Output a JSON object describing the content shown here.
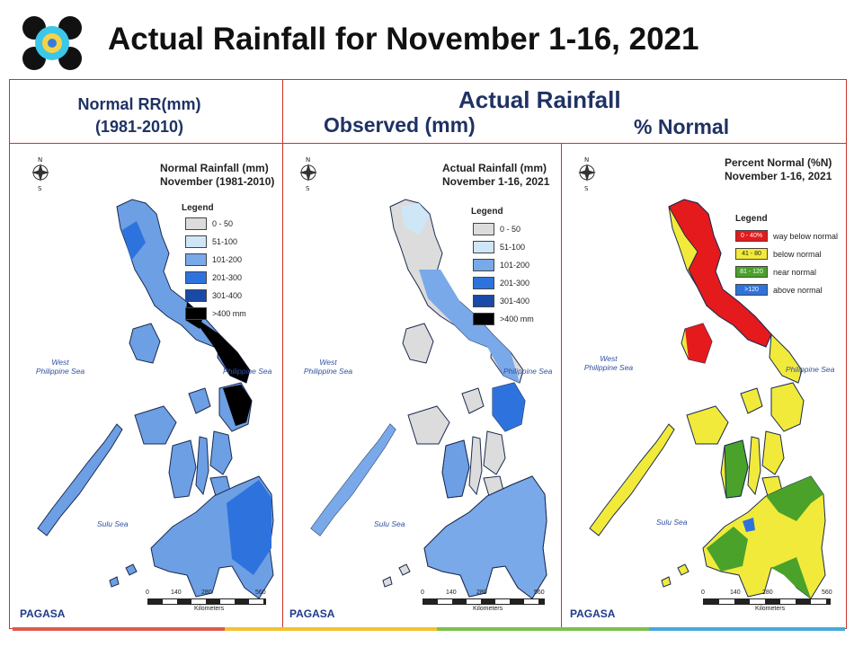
{
  "title": "Actual Rainfall for November 1-16, 2021",
  "headers": {
    "normal_line1": "Normal RR(mm)",
    "normal_line2": "(1981-2010)",
    "actual": "Actual Rainfall",
    "observed": "Observed (mm)",
    "percent": "% Normal"
  },
  "panels": [
    {
      "title_line1": "Normal Rainfall (mm)",
      "title_line2": "November (1981-2010)",
      "legend_title": "Legend",
      "legend": [
        {
          "label": "0 - 50",
          "color": "#dcdcdc"
        },
        {
          "label": "51-100",
          "color": "#cfe6f7"
        },
        {
          "label": "101-200",
          "color": "#79a9e8"
        },
        {
          "label": "201-300",
          "color": "#2e73dd"
        },
        {
          "label": "301-400",
          "color": "#1a4aa8"
        },
        {
          "label": ">400 mm",
          "color": "#000000"
        }
      ]
    },
    {
      "title_line1": "Actual Rainfall (mm)",
      "title_line2": "November 1-16, 2021",
      "legend_title": "Legend",
      "legend": [
        {
          "label": "0 - 50",
          "color": "#dcdcdc"
        },
        {
          "label": "51-100",
          "color": "#cfe6f7"
        },
        {
          "label": "101-200",
          "color": "#79a9e8"
        },
        {
          "label": "201-300",
          "color": "#2e73dd"
        },
        {
          "label": "301-400",
          "color": "#1a4aa8"
        },
        {
          "label": ">400 mm",
          "color": "#000000"
        }
      ]
    },
    {
      "title_line1": "Percent Normal (%N)",
      "title_line2": "November 1-16, 2021",
      "legend_title": "Legend",
      "legend": [
        {
          "range": "0 - 40%",
          "label": "way below normal",
          "color": "#e41a1c"
        },
        {
          "range": "41 - 80",
          "label": "below normal",
          "color": "#f2ea3a"
        },
        {
          "range": "81 - 120",
          "label": "near normal",
          "color": "#4aa22a"
        },
        {
          "range": ">120",
          "label": "above normal",
          "color": "#2e73dd"
        }
      ]
    }
  ],
  "seas": {
    "west_line1": "West",
    "west_line2": "Philippine Sea",
    "east": "Philippine Sea",
    "sulu": "Sulu Sea"
  },
  "scale": {
    "ticks": [
      "0",
      "140",
      "280",
      "560"
    ],
    "unit": "Kilometers"
  },
  "brand": "PAGASA",
  "colors": {
    "frame": "#c8342b",
    "header": "#1f3264",
    "bar": [
      "#e05a4f",
      "#f2c230",
      "#7cc04f",
      "#49a8dc"
    ]
  }
}
